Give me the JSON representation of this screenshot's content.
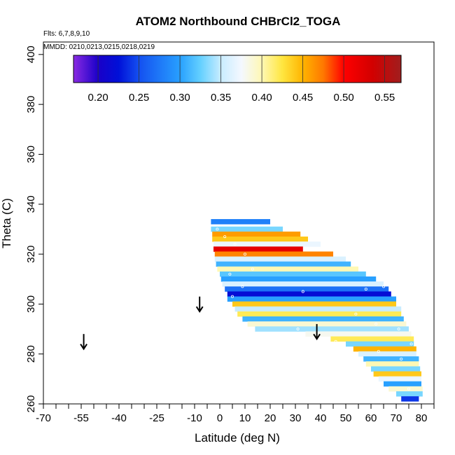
{
  "chart_data": {
    "type": "heatmap",
    "title": "ATOM2 Northbound CHBrCl2_TOGA",
    "notes": {
      "flights": "Flts: 6,7,8,9,10",
      "dates": "MMDD: 0210,0213,0215,0218,0219"
    },
    "xlabel": "Latitude (deg N)",
    "ylabel": "Theta (C)",
    "xlim": [
      -70,
      85
    ],
    "ylim": [
      260,
      405
    ],
    "x_ticks": [
      -70,
      -55,
      -40,
      -25,
      -10,
      0,
      10,
      20,
      30,
      40,
      50,
      60,
      70,
      80
    ],
    "x_minor_ticks": [
      -65,
      -60,
      -50,
      -45,
      -35,
      -30,
      -20,
      -15,
      -5,
      5,
      15,
      25,
      35,
      45,
      55,
      65,
      75,
      85
    ],
    "y_ticks": [
      260,
      280,
      300,
      320,
      340,
      360,
      380,
      400
    ],
    "grid": false,
    "colorbar": {
      "placement": "top-inside",
      "range": [
        0.17,
        0.57
      ],
      "ticks": [
        0.2,
        0.25,
        0.3,
        0.35,
        0.4,
        0.45,
        0.5,
        0.55
      ],
      "tick_labels": [
        "0.20",
        "0.25",
        "0.30",
        "0.35",
        "0.40",
        "0.45",
        "0.50",
        "0.55"
      ],
      "stops": [
        {
          "v": 0.17,
          "color": "#8a2be2"
        },
        {
          "v": 0.2,
          "color": "#1a00c8"
        },
        {
          "v": 0.225,
          "color": "#0010d8"
        },
        {
          "v": 0.25,
          "color": "#1450f0"
        },
        {
          "v": 0.3,
          "color": "#28a0ff"
        },
        {
          "v": 0.325,
          "color": "#64d0ff"
        },
        {
          "v": 0.35,
          "color": "#c8ecff"
        },
        {
          "v": 0.375,
          "color": "#f4f8ff"
        },
        {
          "v": 0.4,
          "color": "#fff8b4"
        },
        {
          "v": 0.425,
          "color": "#ffe640"
        },
        {
          "v": 0.45,
          "color": "#ffb400"
        },
        {
          "v": 0.475,
          "color": "#ff7800"
        },
        {
          "v": 0.5,
          "color": "#ff0000"
        },
        {
          "v": 0.535,
          "color": "#d20000"
        },
        {
          "v": 0.57,
          "color": "#a01e1e"
        }
      ]
    },
    "bands": [
      {
        "y": 333,
        "x0": -3.5,
        "x1": 20,
        "value": 0.28
      },
      {
        "y": 330,
        "x0": -3.5,
        "x1": 25,
        "value": 0.33
      },
      {
        "y": 328,
        "x0": -3,
        "x1": 32,
        "value": 0.46
      },
      {
        "y": 326,
        "x0": -3,
        "x1": 35,
        "value": 0.44
      },
      {
        "y": 324,
        "x0": -2.5,
        "x1": 40,
        "value": 0.37
      },
      {
        "y": 322,
        "x0": -2.5,
        "x1": 33,
        "value": 0.52
      },
      {
        "y": 320,
        "x0": -2,
        "x1": 45,
        "value": 0.47
      },
      {
        "y": 318,
        "x0": -2,
        "x1": 50,
        "value": 0.36
      },
      {
        "y": 316,
        "x0": -1.5,
        "x1": 52,
        "value": 0.31
      },
      {
        "y": 314,
        "x0": -1,
        "x1": 55,
        "value": 0.4
      },
      {
        "y": 312,
        "x0": 0,
        "x1": 58,
        "value": 0.32
      },
      {
        "y": 310,
        "x0": 0.5,
        "x1": 62,
        "value": 0.3
      },
      {
        "y": 308,
        "x0": 1,
        "x1": 65,
        "value": 0.36
      },
      {
        "y": 306,
        "x0": 2,
        "x1": 67,
        "value": 0.27
      },
      {
        "y": 304,
        "x0": 3,
        "x1": 68,
        "value": 0.22
      },
      {
        "y": 302,
        "x0": 3,
        "x1": 70,
        "value": 0.3
      },
      {
        "y": 300,
        "x0": 5,
        "x1": 70,
        "value": 0.44
      },
      {
        "y": 298,
        "x0": 6,
        "x1": 72,
        "value": 0.35
      },
      {
        "y": 296,
        "x0": 7,
        "x1": 72,
        "value": 0.42
      },
      {
        "y": 294,
        "x0": 9,
        "x1": 73,
        "value": 0.31
      },
      {
        "y": 292,
        "x0": 11,
        "x1": 74,
        "value": 0.39
      },
      {
        "y": 290,
        "x0": 14,
        "x1": 75,
        "value": 0.34
      },
      {
        "y": 288,
        "x0": 34,
        "x1": 76,
        "value": 0.38
      },
      {
        "y": 286,
        "x0": 44,
        "x1": 77,
        "value": 0.42
      },
      {
        "y": 284,
        "x0": 50,
        "x1": 77,
        "value": 0.33
      },
      {
        "y": 282,
        "x0": 53,
        "x1": 78,
        "value": 0.45
      },
      {
        "y": 280,
        "x0": 55,
        "x1": 78,
        "value": 0.36
      },
      {
        "y": 278,
        "x0": 57,
        "x1": 79,
        "value": 0.31
      },
      {
        "y": 276,
        "x0": 58,
        "x1": 79,
        "value": 0.4
      },
      {
        "y": 274,
        "x0": 60,
        "x1": 79.5,
        "value": 0.33
      },
      {
        "y": 272,
        "x0": 61,
        "x1": 80,
        "value": 0.44
      },
      {
        "y": 270,
        "x0": 63,
        "x1": 80,
        "value": 0.37
      },
      {
        "y": 268,
        "x0": 65,
        "x1": 80,
        "value": 0.3
      },
      {
        "y": 266,
        "x0": 67,
        "x1": 80.5,
        "value": 0.39
      },
      {
        "y": 264,
        "x0": 70,
        "x1": 80.5,
        "value": 0.33
      },
      {
        "y": 262,
        "x0": 72,
        "x1": 79,
        "value": 0.24
      }
    ],
    "sample_points": [
      {
        "x": -1,
        "y": 330
      },
      {
        "x": 2,
        "y": 327
      },
      {
        "x": 6,
        "y": 324
      },
      {
        "x": 10,
        "y": 320
      },
      {
        "x": 13,
        "y": 314
      },
      {
        "x": 4,
        "y": 312
      },
      {
        "x": 9,
        "y": 307
      },
      {
        "x": 5,
        "y": 303
      },
      {
        "x": 33,
        "y": 305
      },
      {
        "x": 58,
        "y": 306
      },
      {
        "x": 65,
        "y": 307
      },
      {
        "x": 54,
        "y": 296
      },
      {
        "x": 62,
        "y": 292
      },
      {
        "x": 71,
        "y": 290
      },
      {
        "x": 31,
        "y": 290
      },
      {
        "x": 46,
        "y": 285
      },
      {
        "x": 63,
        "y": 281
      },
      {
        "x": 72,
        "y": 278
      },
      {
        "x": 76,
        "y": 284
      },
      {
        "x": 75,
        "y": 266
      }
    ],
    "arrows": [
      {
        "x": -54,
        "y_top": 288,
        "y_bottom": 282
      },
      {
        "x": -8,
        "y_top": 303,
        "y_bottom": 297
      },
      {
        "x": 38.5,
        "y_top": 292,
        "y_bottom": 286
      }
    ],
    "plot_box": {
      "x_min": -70,
      "x_max": 85,
      "y_min": 260,
      "y_max": 405
    }
  }
}
